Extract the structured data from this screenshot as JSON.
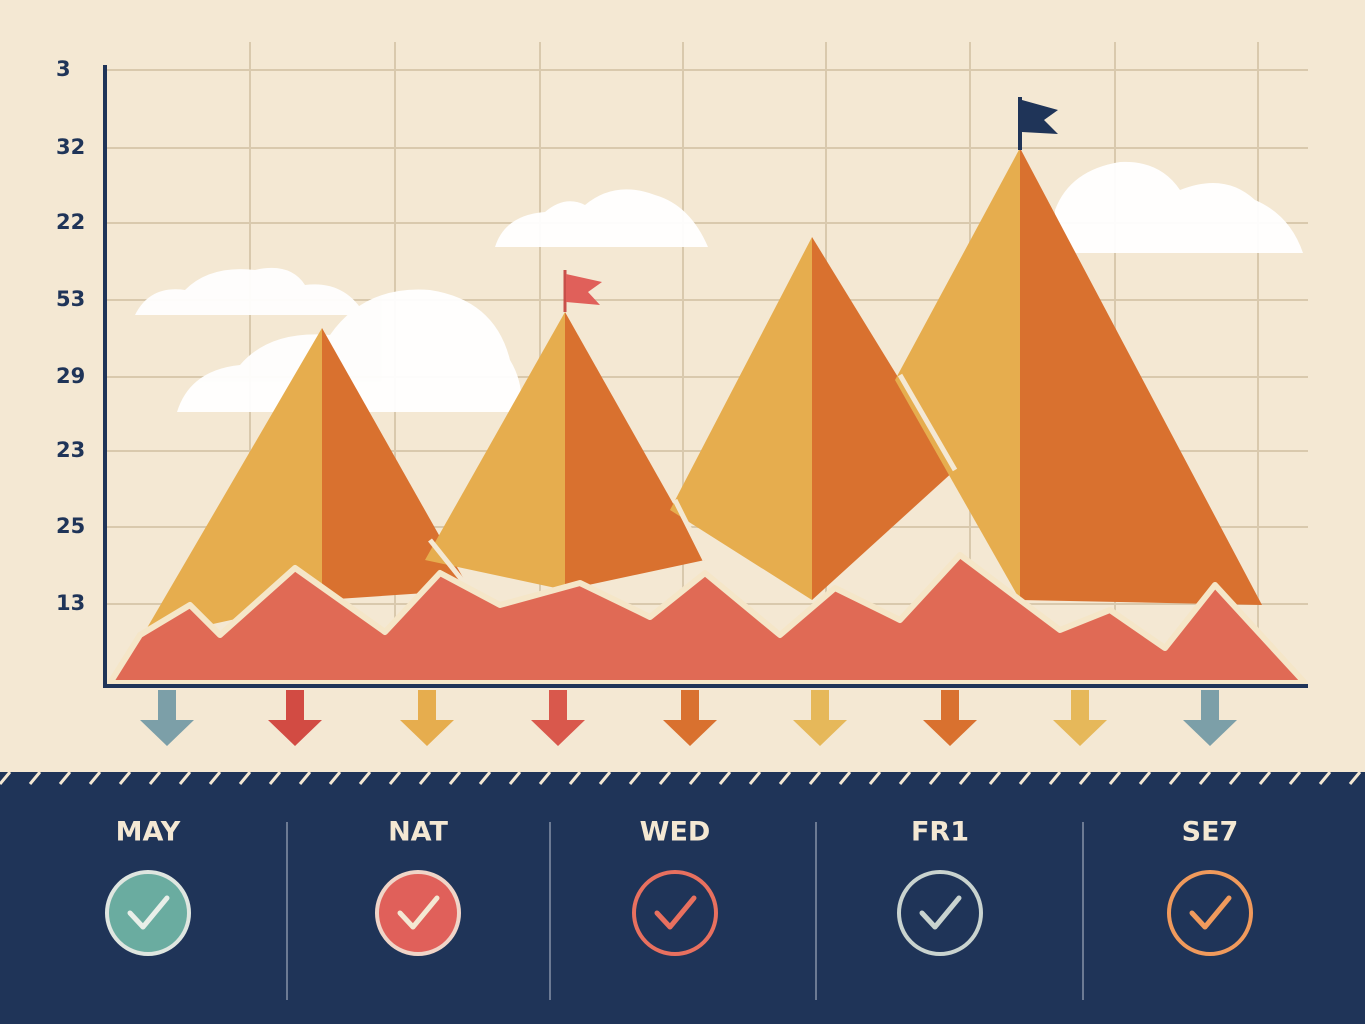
{
  "axis": {
    "labels": [
      "3",
      "32",
      "22",
      "53",
      "29",
      "23",
      "25",
      "13"
    ]
  },
  "days": [
    {
      "label": "MAY"
    },
    {
      "label": "NAT"
    },
    {
      "label": "WED"
    },
    {
      "label": "FR1"
    },
    {
      "label": "SE7"
    }
  ]
}
